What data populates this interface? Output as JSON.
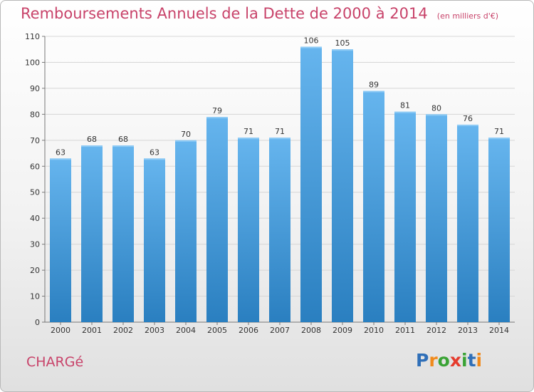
{
  "title": "Remboursements Annuels de la Dette de 2000 à 2014",
  "unit": "(en milliers d'€)",
  "commune": "CHARGé",
  "logo": {
    "text": "Proxiti",
    "letter_colors": [
      "#2f6fb8",
      "#f08a1c",
      "#3aa335",
      "#e53b2d",
      "#3aa335",
      "#2f6fb8",
      "#f08a1c"
    ]
  },
  "colors": {
    "title": "#c8436a",
    "bar_top": "#66b5ee",
    "bar_bottom": "#2a7fc0"
  },
  "chart_data": {
    "type": "bar",
    "title": "Remboursements Annuels de la Dette de 2000 à 2014",
    "xlabel": "",
    "ylabel": "",
    "categories": [
      "2000",
      "2001",
      "2002",
      "2003",
      "2004",
      "2005",
      "2006",
      "2007",
      "2008",
      "2009",
      "2010",
      "2011",
      "2012",
      "2013",
      "2014"
    ],
    "values": [
      63,
      68,
      68,
      63,
      70,
      79,
      71,
      71,
      106,
      105,
      89,
      81,
      80,
      76,
      71
    ],
    "ylim": [
      0,
      110
    ],
    "yticks": [
      0,
      10,
      20,
      30,
      40,
      50,
      60,
      70,
      80,
      90,
      100,
      110
    ],
    "grid": true,
    "data_labels": true
  }
}
